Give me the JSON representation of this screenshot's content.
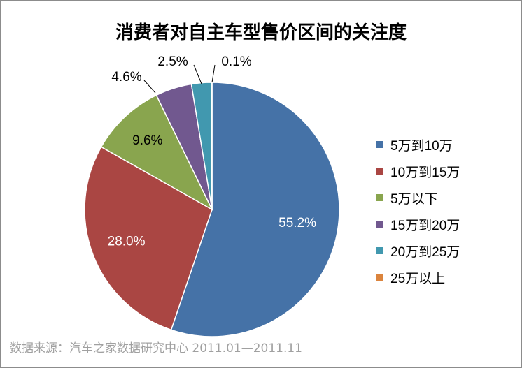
{
  "chart_data": {
    "type": "pie",
    "title": "消费者对自主车型售价区间的关注度",
    "slices": [
      {
        "label": "5万到10万",
        "value": 55.2,
        "display": "55.2%",
        "color": "#4572A7"
      },
      {
        "label": "10万到15万",
        "value": 28.0,
        "display": "28.0%",
        "color": "#AA4643"
      },
      {
        "label": "5万以下",
        "value": 9.6,
        "display": "9.6%",
        "color": "#89A54E"
      },
      {
        "label": "15万到20万",
        "value": 4.6,
        "display": "4.6%",
        "color": "#71588F"
      },
      {
        "label": "20万到25万",
        "value": 2.5,
        "display": "2.5%",
        "color": "#4198AF"
      },
      {
        "label": "25万以上",
        "value": 0.1,
        "display": "0.1%",
        "color": "#DB843D"
      }
    ],
    "legend_position": "right",
    "source": "数据来源：汽车之家数据研究中心 2011.01—2011.11"
  }
}
